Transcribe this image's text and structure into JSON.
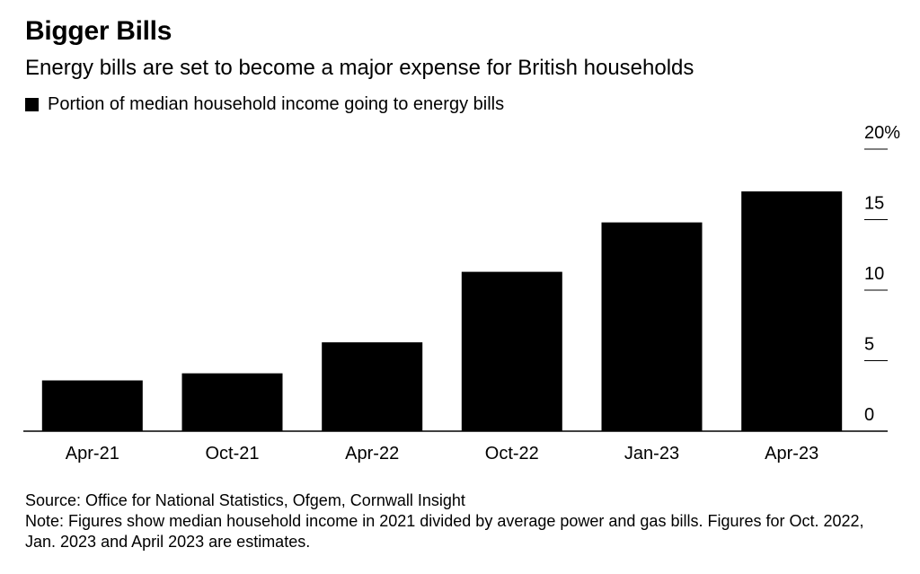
{
  "header": {
    "title": "Bigger Bills",
    "subtitle": "Energy bills are set to become a major expense for British households"
  },
  "legend": {
    "label": "Portion of median household income going to energy bills",
    "color": "#000000"
  },
  "chart_data": {
    "type": "bar",
    "categories": [
      "Apr-21",
      "Oct-21",
      "Apr-22",
      "Oct-22",
      "Jan-23",
      "Apr-23"
    ],
    "series": [
      {
        "name": "Portion of median household income going to energy bills",
        "values": [
          3.6,
          4.1,
          6.3,
          11.3,
          14.8,
          17.0
        ]
      }
    ],
    "y_ticks": [
      0,
      5,
      10,
      15,
      20
    ],
    "y_tick_labels": [
      "0",
      "5",
      "10",
      "15",
      "20%"
    ],
    "ylim": [
      0,
      20
    ],
    "bar_color": "#000000",
    "axis_position": "right",
    "grid": false
  },
  "footer": {
    "source": "Source: Office for National Statistics, Ofgem, Cornwall Insight",
    "note": "Note: Figures show median household income in 2021 divided by average power and gas bills. Figures for Oct. 2022, Jan. 2023 and April 2023 are estimates."
  }
}
